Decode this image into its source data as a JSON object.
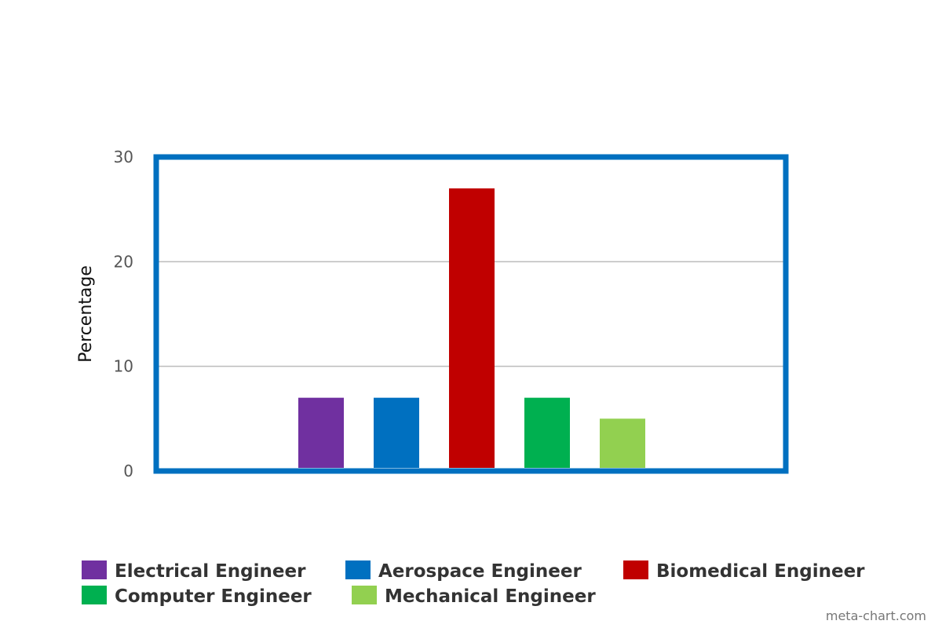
{
  "chart_data": {
    "type": "bar",
    "title": "",
    "xlabel": "",
    "ylabel": "Percentage",
    "ylim": [
      0,
      30
    ],
    "yticks": [
      0,
      10,
      20,
      30
    ],
    "grid": true,
    "legend_position": "bottom",
    "categories": [
      "Electrical Engineer",
      "Aerospace Engineer",
      "Biomedical Engineer",
      "Computer Engineer",
      "Mechanical Engineer"
    ],
    "values": [
      7,
      7,
      27,
      7,
      5
    ],
    "colors": [
      "#7030a0",
      "#0070c0",
      "#c00000",
      "#00b050",
      "#92d050"
    ],
    "frame_color": "#0070c0",
    "grid_color": "#bbbbbb"
  },
  "credit": "meta-chart.com"
}
